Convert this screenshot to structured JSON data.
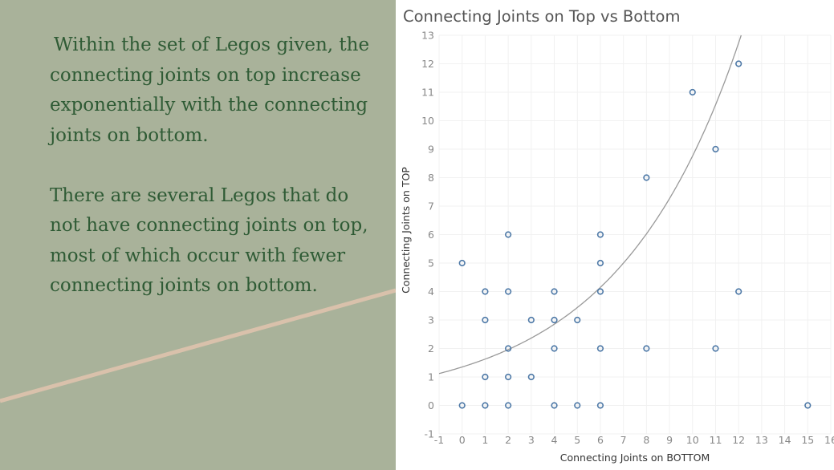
{
  "slide": {
    "background_color": "#ffffff",
    "panel_color": "#a9b29a",
    "accent_line_color": "#d9c1ab",
    "text_color": "#2f5b35",
    "paragraphs": [
      "Within the set of Legos given, the connecting joints on top increase exponentially with the connecting joints on bottom.",
      "There are several Legos that do not have connecting joints on top, most of which occur with fewer connecting joints on bottom."
    ]
  },
  "chart_data": {
    "type": "scatter",
    "title": "Connecting Joints on Top vs Bottom",
    "xlabel": "Connecting Joints on BOTTOM",
    "ylabel": "Connecting Joints on TOP",
    "xlim": [
      -1,
      16
    ],
    "ylim": [
      -1,
      13
    ],
    "x_ticks": [
      -1,
      0,
      1,
      2,
      3,
      4,
      5,
      6,
      7,
      8,
      9,
      10,
      11,
      12,
      13,
      14,
      15,
      16
    ],
    "y_ticks": [
      -1,
      0,
      1,
      2,
      3,
      4,
      5,
      6,
      7,
      8,
      9,
      10,
      11,
      12,
      13
    ],
    "grid": true,
    "marker_color": "#4e79a7",
    "trend_color": "#999999",
    "trendline": {
      "type": "exponential",
      "a": 1.35,
      "b": 0.187
    },
    "points": [
      {
        "x": 0,
        "y": 0
      },
      {
        "x": 0,
        "y": 5
      },
      {
        "x": 1,
        "y": 0
      },
      {
        "x": 1,
        "y": 1
      },
      {
        "x": 1,
        "y": 3
      },
      {
        "x": 1,
        "y": 4
      },
      {
        "x": 2,
        "y": 0
      },
      {
        "x": 2,
        "y": 1
      },
      {
        "x": 2,
        "y": 2
      },
      {
        "x": 2,
        "y": 4
      },
      {
        "x": 2,
        "y": 6
      },
      {
        "x": 3,
        "y": 1
      },
      {
        "x": 3,
        "y": 3
      },
      {
        "x": 4,
        "y": 0
      },
      {
        "x": 4,
        "y": 2
      },
      {
        "x": 4,
        "y": 3
      },
      {
        "x": 4,
        "y": 4
      },
      {
        "x": 5,
        "y": 0
      },
      {
        "x": 5,
        "y": 3
      },
      {
        "x": 6,
        "y": 0
      },
      {
        "x": 6,
        "y": 2
      },
      {
        "x": 6,
        "y": 4
      },
      {
        "x": 6,
        "y": 5
      },
      {
        "x": 6,
        "y": 6
      },
      {
        "x": 8,
        "y": 2
      },
      {
        "x": 8,
        "y": 8
      },
      {
        "x": 10,
        "y": 11
      },
      {
        "x": 11,
        "y": 2
      },
      {
        "x": 11,
        "y": 9
      },
      {
        "x": 12,
        "y": 4
      },
      {
        "x": 12,
        "y": 12
      },
      {
        "x": 15,
        "y": 0
      }
    ]
  }
}
